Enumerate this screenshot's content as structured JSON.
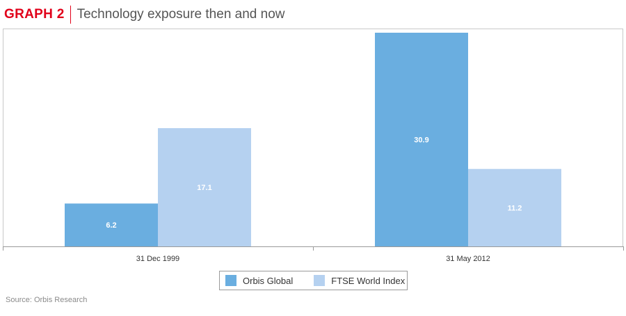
{
  "header": {
    "label": "GRAPH 2",
    "title": "Technology exposure then and now",
    "accent_color": "#e1001a"
  },
  "chart_data": {
    "type": "bar",
    "categories": [
      "31 Dec 1999",
      "31 May 2012"
    ],
    "series": [
      {
        "name": "Orbis Global",
        "values": [
          6.2,
          30.9
        ],
        "color": "#6aaee0"
      },
      {
        "name": "FTSE World Index",
        "values": [
          17.1,
          11.2
        ],
        "color": "#b5d1f0"
      }
    ],
    "ylim": [
      0,
      30.9
    ],
    "grid": false,
    "legend_position": "bottom-center",
    "value_labels": "inside-bars"
  },
  "legend": {
    "items": [
      {
        "label": "Orbis Global",
        "color": "#6aaee0"
      },
      {
        "label": "FTSE World Index",
        "color": "#b5d1f0"
      }
    ]
  },
  "source": "Source: Orbis Research"
}
